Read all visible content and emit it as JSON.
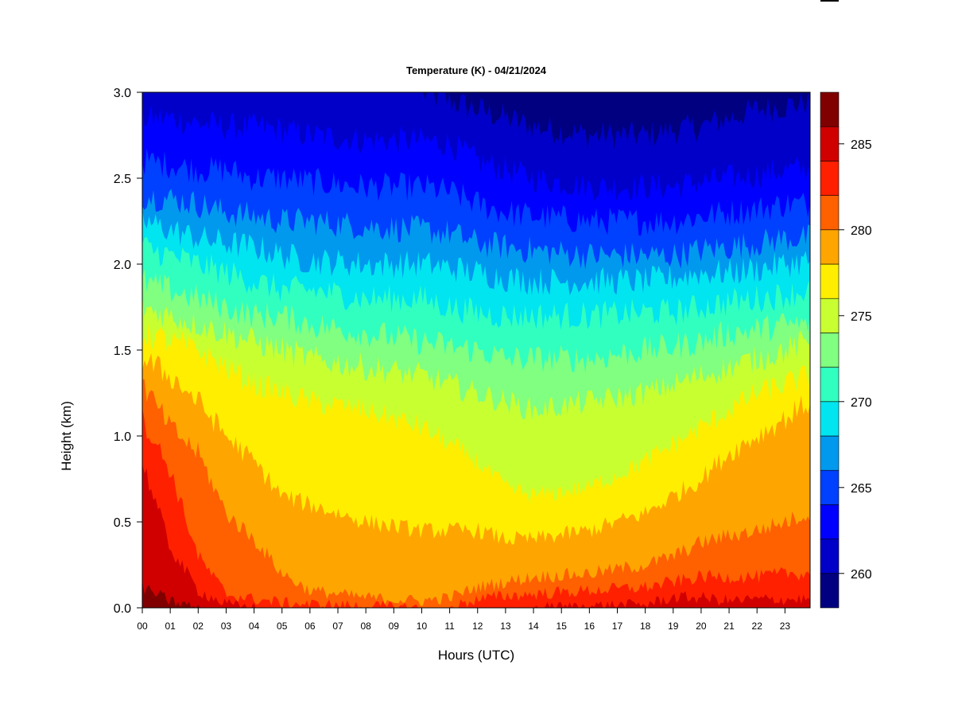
{
  "chart_data": {
    "type": "heatmap",
    "title": "Temperature (K) - 04/21/2024",
    "xlabel": "Hours (UTC)",
    "ylabel": "Height (km)",
    "xlim": [
      0,
      23.9
    ],
    "ylim": [
      0,
      3.0
    ],
    "x_ticks": [
      "00",
      "01",
      "02",
      "03",
      "04",
      "05",
      "06",
      "07",
      "08",
      "09",
      "10",
      "11",
      "12",
      "13",
      "14",
      "15",
      "16",
      "17",
      "18",
      "19",
      "20",
      "21",
      "22",
      "23"
    ],
    "y_ticks": [
      "0.0",
      "0.5",
      "1.0",
      "1.5",
      "2.0",
      "2.5",
      "3.0"
    ],
    "colorbar": {
      "range": [
        258,
        288
      ],
      "step": 2,
      "ticks": [
        "260",
        "265",
        "270",
        "275",
        "280",
        "285"
      ],
      "colors": [
        "#000080",
        "#0000C8",
        "#0000FF",
        "#0040FF",
        "#0099EE",
        "#00E5F0",
        "#30FFC0",
        "#80FF80",
        "#C8FF30",
        "#FFEE00",
        "#FFA500",
        "#FF6000",
        "#FF2000",
        "#D00000",
        "#800000"
      ]
    },
    "contour_heights_km": {
      "hours": [
        0,
        1,
        2,
        3,
        4,
        5,
        6,
        8,
        10,
        11,
        12,
        13,
        14,
        16,
        18,
        19,
        20,
        21,
        22,
        23,
        23.9
      ],
      "levels": [
        {
          "temperature_K": 286,
          "heights": [
            0.12,
            0.04,
            0.0,
            0.0,
            0.0,
            0.0,
            0.0,
            0.0,
            0.0,
            0.0,
            0.0,
            0.0,
            0.0,
            0.0,
            0.0,
            0.0,
            0.0,
            0.0,
            0.0,
            0.0,
            0.0
          ]
        },
        {
          "temperature_K": 284,
          "heights": [
            0.85,
            0.35,
            0.1,
            0.02,
            0.0,
            0.0,
            0.0,
            0.0,
            0.0,
            0.0,
            0.0,
            0.0,
            0.0,
            0.01,
            0.02,
            0.06,
            0.06,
            0.04,
            0.05,
            0.05,
            0.05
          ]
        },
        {
          "temperature_K": 282,
          "heights": [
            1.1,
            0.8,
            0.3,
            0.08,
            0.05,
            0.03,
            0.02,
            0.01,
            0.0,
            0.0,
            0.05,
            0.07,
            0.08,
            0.1,
            0.12,
            0.15,
            0.18,
            0.18,
            0.18,
            0.2,
            0.2
          ]
        },
        {
          "temperature_K": 280,
          "heights": [
            1.3,
            1.05,
            0.9,
            0.55,
            0.4,
            0.2,
            0.1,
            0.06,
            0.04,
            0.06,
            0.12,
            0.15,
            0.18,
            0.2,
            0.25,
            0.3,
            0.38,
            0.42,
            0.45,
            0.5,
            0.55
          ]
        },
        {
          "temperature_K": 278,
          "heights": [
            1.45,
            1.35,
            1.2,
            1.0,
            0.85,
            0.65,
            0.6,
            0.5,
            0.45,
            0.45,
            0.45,
            0.4,
            0.4,
            0.45,
            0.55,
            0.65,
            0.75,
            0.9,
            1.0,
            1.1,
            1.2
          ]
        },
        {
          "temperature_K": 276,
          "heights": [
            1.6,
            1.55,
            1.5,
            1.4,
            1.3,
            1.25,
            1.2,
            1.15,
            1.05,
            0.95,
            0.85,
            0.7,
            0.65,
            0.7,
            0.85,
            0.95,
            1.05,
            1.15,
            1.25,
            1.3,
            1.35
          ]
        },
        {
          "temperature_K": 274,
          "heights": [
            1.75,
            1.7,
            1.65,
            1.6,
            1.55,
            1.5,
            1.45,
            1.4,
            1.35,
            1.3,
            1.25,
            1.2,
            1.15,
            1.2,
            1.25,
            1.3,
            1.35,
            1.4,
            1.45,
            1.5,
            1.55
          ]
        },
        {
          "temperature_K": 272,
          "heights": [
            1.9,
            1.85,
            1.8,
            1.75,
            1.7,
            1.7,
            1.65,
            1.6,
            1.55,
            1.52,
            1.5,
            1.45,
            1.45,
            1.45,
            1.5,
            1.52,
            1.55,
            1.6,
            1.62,
            1.65,
            1.65
          ]
        },
        {
          "temperature_K": 270,
          "heights": [
            2.1,
            2.05,
            2.0,
            1.95,
            1.9,
            1.85,
            1.85,
            1.8,
            1.8,
            1.75,
            1.72,
            1.7,
            1.7,
            1.7,
            1.72,
            1.72,
            1.75,
            1.78,
            1.8,
            1.82,
            1.85
          ]
        },
        {
          "temperature_K": 268,
          "heights": [
            2.25,
            2.2,
            2.15,
            2.12,
            2.1,
            2.05,
            2.02,
            2.0,
            2.0,
            1.98,
            1.95,
            1.92,
            1.9,
            1.9,
            1.9,
            1.92,
            1.95,
            1.95,
            1.97,
            2.0,
            2.02
          ]
        },
        {
          "temperature_K": 266,
          "heights": [
            2.4,
            2.38,
            2.35,
            2.3,
            2.28,
            2.25,
            2.25,
            2.22,
            2.2,
            2.18,
            2.12,
            2.1,
            2.08,
            2.05,
            2.05,
            2.05,
            2.08,
            2.1,
            2.12,
            2.15,
            2.15
          ]
        },
        {
          "temperature_K": 264,
          "heights": [
            2.6,
            2.58,
            2.55,
            2.55,
            2.5,
            2.5,
            2.48,
            2.45,
            2.45,
            2.42,
            2.35,
            2.3,
            2.28,
            2.25,
            2.25,
            2.25,
            2.28,
            2.3,
            2.32,
            2.35,
            2.35
          ]
        },
        {
          "temperature_K": 262,
          "heights": [
            2.85,
            2.85,
            2.82,
            2.8,
            2.8,
            2.78,
            2.75,
            2.72,
            2.72,
            2.7,
            2.6,
            2.55,
            2.5,
            2.45,
            2.45,
            2.45,
            2.48,
            2.5,
            2.52,
            2.55,
            2.55
          ]
        },
        {
          "temperature_K": 260,
          "heights": [
            3.0,
            3.0,
            3.0,
            3.0,
            3.0,
            3.0,
            3.0,
            3.0,
            3.0,
            2.95,
            2.9,
            2.85,
            2.8,
            2.75,
            2.75,
            2.78,
            2.8,
            2.85,
            2.9,
            2.92,
            2.95
          ]
        }
      ]
    }
  }
}
